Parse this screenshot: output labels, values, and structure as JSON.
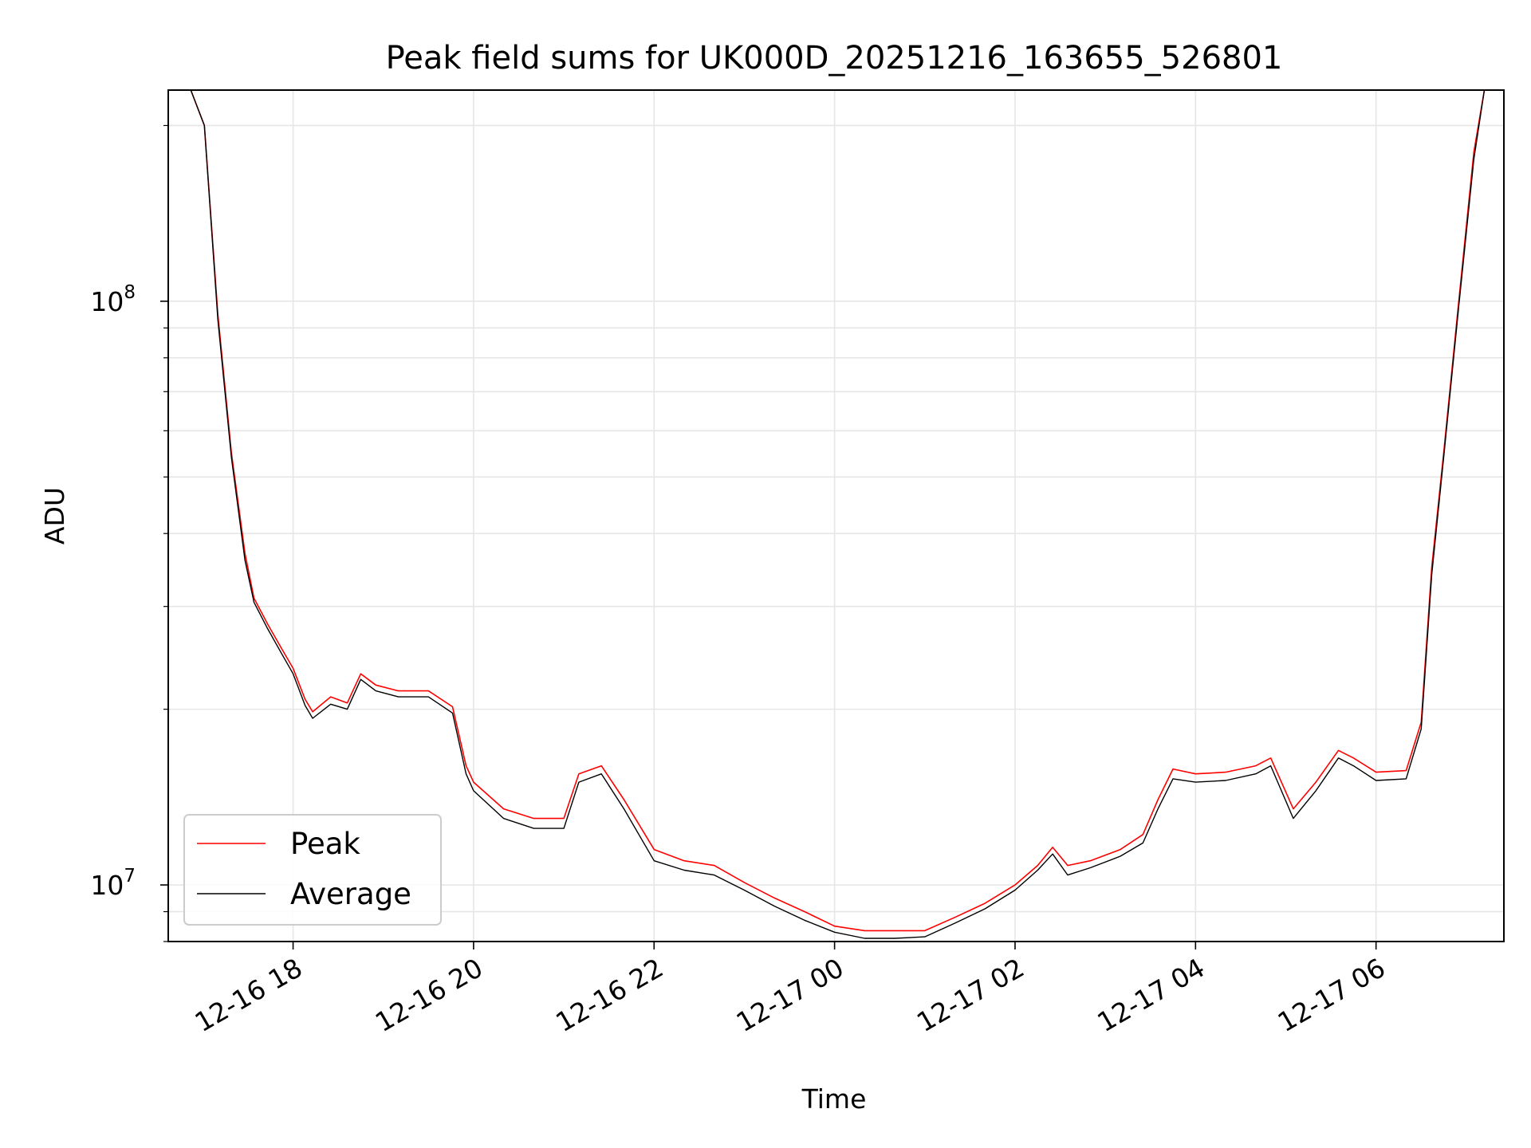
{
  "chart_data": {
    "type": "line",
    "title": "Peak field sums for UK000D_20251216_163655_526801",
    "xlabel": "Time",
    "ylabel": "ADU",
    "yscale": "log",
    "x_range": [
      "2025-12-16 16:37",
      "2025-12-17 07:25"
    ],
    "ylim": [
      8000000,
      230000000
    ],
    "x_ticks": [
      "12-16 18",
      "12-16 20",
      "12-16 22",
      "12-17 00",
      "12-17 02",
      "12-17 04",
      "12-17 06"
    ],
    "y_ticks": [
      {
        "base": "10",
        "exp": "7",
        "value": 10000000
      },
      {
        "base": "10",
        "exp": "8",
        "value": 100000000
      }
    ],
    "grid": true,
    "legend_position": "lower-left",
    "colors": {
      "peak": "#ff0000",
      "average": "#000000"
    },
    "series": [
      {
        "name": "Peak",
        "x": [
          "2025-12-16 16:52",
          "2025-12-16 17:01",
          "2025-12-16 17:10",
          "2025-12-16 17:19",
          "2025-12-16 17:28",
          "2025-12-16 17:34",
          "2025-12-16 17:43",
          "2025-12-16 17:52",
          "2025-12-16 18:00",
          "2025-12-16 18:08",
          "2025-12-16 18:13",
          "2025-12-16 18:25",
          "2025-12-16 18:36",
          "2025-12-16 18:45",
          "2025-12-16 18:55",
          "2025-12-16 19:10",
          "2025-12-16 19:30",
          "2025-12-16 19:46",
          "2025-12-16 19:55",
          "2025-12-16 20:00",
          "2025-12-16 20:20",
          "2025-12-16 20:40",
          "2025-12-16 21:00",
          "2025-12-16 21:10",
          "2025-12-16 21:25",
          "2025-12-16 21:40",
          "2025-12-16 22:00",
          "2025-12-16 22:20",
          "2025-12-16 22:40",
          "2025-12-16 23:00",
          "2025-12-16 23:20",
          "2025-12-16 23:40",
          "2025-12-17 00:00",
          "2025-12-17 00:20",
          "2025-12-17 00:40",
          "2025-12-17 01:00",
          "2025-12-17 01:20",
          "2025-12-17 01:40",
          "2025-12-17 02:00",
          "2025-12-17 02:15",
          "2025-12-17 02:25",
          "2025-12-17 02:35",
          "2025-12-17 02:50",
          "2025-12-17 03:10",
          "2025-12-17 03:25",
          "2025-12-17 03:35",
          "2025-12-17 03:45",
          "2025-12-17 04:00",
          "2025-12-17 04:20",
          "2025-12-17 04:40",
          "2025-12-17 04:50",
          "2025-12-17 05:05",
          "2025-12-17 05:20",
          "2025-12-17 05:35",
          "2025-12-17 05:45",
          "2025-12-17 06:00",
          "2025-12-17 06:20",
          "2025-12-17 06:30",
          "2025-12-17 06:37",
          "2025-12-17 06:45",
          "2025-12-17 06:55",
          "2025-12-17 07:05",
          "2025-12-17 07:12"
        ],
        "values": [
          230000000,
          200000000,
          95000000,
          55000000,
          37000000,
          31000000,
          28000000,
          25500000,
          23500000,
          20800000,
          19800000,
          21000000,
          20500000,
          23000000,
          22000000,
          21500000,
          21500000,
          20200000,
          16000000,
          15000000,
          13500000,
          13000000,
          13000000,
          15500000,
          16000000,
          14000000,
          11500000,
          11000000,
          10800000,
          10100000,
          9500000,
          9000000,
          8500000,
          8350000,
          8350000,
          8350000,
          8800000,
          9300000,
          10000000,
          10800000,
          11600000,
          10800000,
          11000000,
          11500000,
          12200000,
          14000000,
          15800000,
          15500000,
          15600000,
          16000000,
          16500000,
          13500000,
          15000000,
          17000000,
          16500000,
          15600000,
          15700000,
          19000000,
          35000000,
          55000000,
          100000000,
          180000000,
          230000000
        ]
      },
      {
        "name": "Average",
        "x": [
          "2025-12-16 16:52",
          "2025-12-16 17:01",
          "2025-12-16 17:10",
          "2025-12-16 17:19",
          "2025-12-16 17:28",
          "2025-12-16 17:34",
          "2025-12-16 17:43",
          "2025-12-16 17:52",
          "2025-12-16 18:00",
          "2025-12-16 18:08",
          "2025-12-16 18:13",
          "2025-12-16 18:25",
          "2025-12-16 18:36",
          "2025-12-16 18:45",
          "2025-12-16 18:55",
          "2025-12-16 19:10",
          "2025-12-16 19:30",
          "2025-12-16 19:46",
          "2025-12-16 19:55",
          "2025-12-16 20:00",
          "2025-12-16 20:20",
          "2025-12-16 20:40",
          "2025-12-16 21:00",
          "2025-12-16 21:10",
          "2025-12-16 21:25",
          "2025-12-16 21:40",
          "2025-12-16 22:00",
          "2025-12-16 22:20",
          "2025-12-16 22:40",
          "2025-12-16 23:00",
          "2025-12-16 23:20",
          "2025-12-16 23:40",
          "2025-12-17 00:00",
          "2025-12-17 00:20",
          "2025-12-17 00:40",
          "2025-12-17 01:00",
          "2025-12-17 01:20",
          "2025-12-17 01:40",
          "2025-12-17 02:00",
          "2025-12-17 02:15",
          "2025-12-17 02:25",
          "2025-12-17 02:35",
          "2025-12-17 02:50",
          "2025-12-17 03:10",
          "2025-12-17 03:25",
          "2025-12-17 03:35",
          "2025-12-17 03:45",
          "2025-12-17 04:00",
          "2025-12-17 04:20",
          "2025-12-17 04:40",
          "2025-12-17 04:50",
          "2025-12-17 05:05",
          "2025-12-17 05:20",
          "2025-12-17 05:35",
          "2025-12-17 05:45",
          "2025-12-17 06:00",
          "2025-12-17 06:20",
          "2025-12-17 06:30",
          "2025-12-17 06:37",
          "2025-12-17 06:45",
          "2025-12-17 06:55",
          "2025-12-17 07:05",
          "2025-12-17 07:12"
        ],
        "values": [
          230000000,
          200000000,
          93000000,
          54000000,
          36000000,
          30500000,
          27500000,
          25000000,
          23000000,
          20300000,
          19300000,
          20400000,
          20000000,
          22500000,
          21500000,
          21000000,
          21000000,
          19700000,
          15500000,
          14500000,
          13000000,
          12500000,
          12500000,
          15000000,
          15500000,
          13500000,
          11000000,
          10600000,
          10400000,
          9800000,
          9200000,
          8700000,
          8300000,
          8100000,
          8100000,
          8150000,
          8600000,
          9100000,
          9800000,
          10600000,
          11300000,
          10400000,
          10700000,
          11200000,
          11800000,
          13500000,
          15200000,
          15000000,
          15100000,
          15500000,
          16000000,
          13000000,
          14500000,
          16500000,
          16000000,
          15100000,
          15200000,
          18500000,
          34000000,
          54000000,
          98000000,
          175000000,
          230000000
        ]
      }
    ],
    "legend": [
      {
        "label": "Peak",
        "color": "#ff0000"
      },
      {
        "label": "Average",
        "color": "#000000"
      }
    ]
  }
}
